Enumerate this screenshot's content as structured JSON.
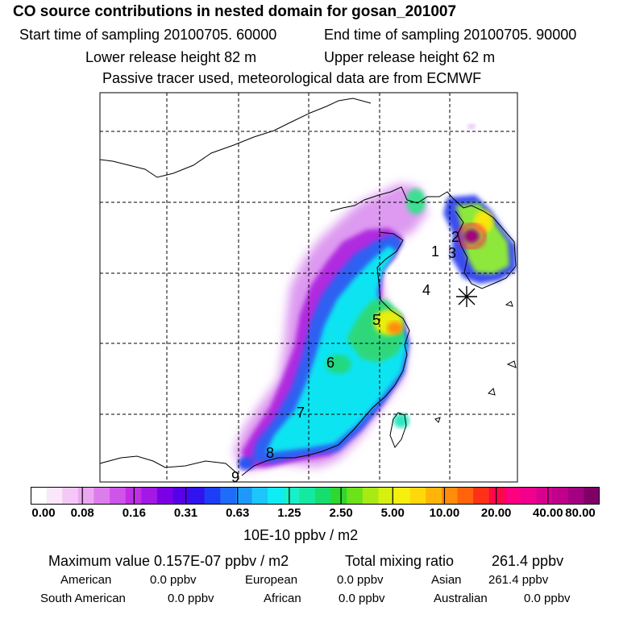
{
  "header": {
    "title": "CO  source contributions in nested domain for gosan_201007",
    "start_label": "Start time of sampling 20100705. 60000",
    "end_label": "End time of sampling 20100705. 90000",
    "lower_label": "Lower release height   82 m",
    "upper_label": "Upper release height   62 m",
    "note": "Passive tracer used, meteorological data are from ECMWF"
  },
  "map": {
    "markers": [
      "1",
      "2",
      "3",
      "4",
      "5",
      "6",
      "7",
      "8",
      "9"
    ],
    "receptor_symbol": "asterisk"
  },
  "colorbar": {
    "colors": [
      "#ffffff",
      "#fbe6fb",
      "#f4c8f6",
      "#eaa8f1",
      "#dd7dec",
      "#cf55ea",
      "#c02ee6",
      "#a318e3",
      "#7b00e6",
      "#5500e8",
      "#2f14ef",
      "#1c3ef6",
      "#1f6cfa",
      "#1f98fb",
      "#1cc6fb",
      "#10ecf5",
      "#18f0c8",
      "#15e8a0",
      "#17dd6c",
      "#2fd72e",
      "#6be21a",
      "#a9ea14",
      "#d8ef12",
      "#f6f00e",
      "#ffd80c",
      "#ffb40a",
      "#ff8c0a",
      "#ff640a",
      "#ff3018",
      "#ff0848",
      "#ff0080",
      "#f0008c",
      "#d8008e",
      "#c0008a",
      "#a40082",
      "#800068"
    ],
    "tick_labels": [
      "0.00",
      "0.08",
      "0.16",
      "0.31",
      "0.63",
      "1.25",
      "2.50",
      "5.00",
      "10.00",
      "20.00",
      "40.00",
      "80.00"
    ],
    "unit": "10E-10 ppbv / m2"
  },
  "summary": {
    "max_label": "Maximum value  0.157E-07 ppbv / m2",
    "total_label": "Total mixing ratio",
    "total_value": "261.4 ppbv",
    "american_label": "American",
    "american_value": "0.0 ppbv",
    "european_label": "European",
    "european_value": "0.0 ppbv",
    "asian_label": "Asian",
    "asian_value": "261.4 ppbv",
    "south_american_label": "South American",
    "south_american_value": "0.0 ppbv",
    "african_label": "African",
    "african_value": "0.0 ppbv",
    "australian_label": "Australian",
    "australian_value": "0.0 ppbv"
  }
}
